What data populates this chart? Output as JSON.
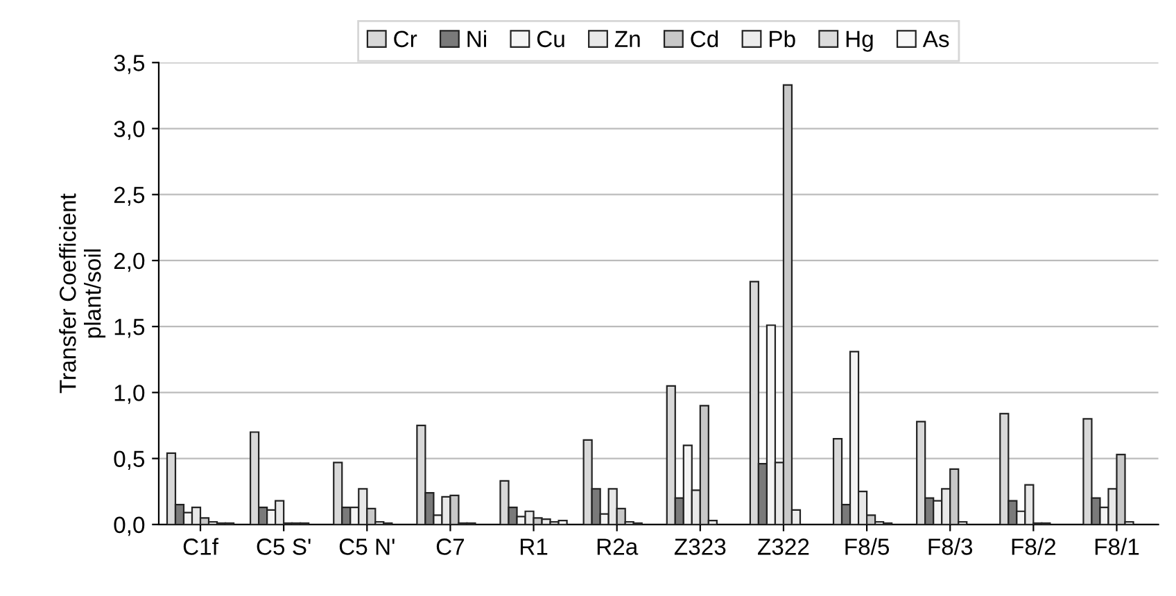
{
  "chart_data": {
    "type": "bar",
    "ylabel": "Transfer Coefficient\nplant/soil",
    "categories": [
      "C1f",
      "C5 S'",
      "C5 N'",
      "C7",
      "R1",
      "R2a",
      "Z323",
      "Z322",
      "F8/5",
      "F8/3",
      "F8/2",
      "F8/1"
    ],
    "series": [
      {
        "name": "Cr",
        "color": "#d8d8d8",
        "values": [
          0.54,
          0.7,
          0.47,
          0.75,
          0.33,
          0.64,
          1.05,
          1.84,
          0.65,
          0.78,
          0.84,
          0.8
        ]
      },
      {
        "name": "Ni",
        "color": "#7a7a7a",
        "values": [
          0.15,
          0.13,
          0.13,
          0.24,
          0.13,
          0.27,
          0.2,
          0.46,
          0.15,
          0.2,
          0.18,
          0.2
        ]
      },
      {
        "name": "Cu",
        "color": "#f4f4f4",
        "values": [
          0.09,
          0.11,
          0.13,
          0.07,
          0.06,
          0.08,
          0.6,
          1.51,
          1.31,
          0.18,
          0.1,
          0.13
        ]
      },
      {
        "name": "Zn",
        "color": "#e8e8e8",
        "values": [
          0.13,
          0.18,
          0.27,
          0.21,
          0.1,
          0.27,
          0.26,
          0.47,
          0.25,
          0.27,
          0.3,
          0.27
        ]
      },
      {
        "name": "Cd",
        "color": "#c8c8c8",
        "values": [
          0.05,
          0.01,
          0.12,
          0.22,
          0.05,
          0.12,
          0.9,
          3.33,
          0.07,
          0.42,
          0.01,
          0.53
        ]
      },
      {
        "name": "Pb",
        "color": "#ececec",
        "values": [
          0.02,
          0.01,
          0.02,
          0.01,
          0.04,
          0.02,
          0.03,
          0.11,
          0.02,
          0.02,
          0.01,
          0.02
        ]
      },
      {
        "name": "Hg",
        "color": "#dcdcdc",
        "values": [
          0.01,
          0.01,
          0.01,
          0.01,
          0.02,
          0.01,
          null,
          null,
          0.01,
          null,
          null,
          null
        ]
      },
      {
        "name": "As",
        "color": "#f8f8f8",
        "values": [
          0.01,
          null,
          null,
          null,
          0.03,
          null,
          null,
          null,
          null,
          null,
          null,
          null
        ]
      }
    ],
    "ylim": [
      0,
      3.5
    ],
    "yticks": [
      {
        "value": 0,
        "label": "0,0"
      },
      {
        "value": 0.5,
        "label": "0,5"
      },
      {
        "value": 1.0,
        "label": "1,0"
      },
      {
        "value": 1.5,
        "label": "1,5"
      },
      {
        "value": 2.0,
        "label": "2,0"
      },
      {
        "value": 2.5,
        "label": "2,5"
      },
      {
        "value": 3.0,
        "label": "3,0"
      },
      {
        "value": 3.5,
        "label": "3,5"
      }
    ],
    "grid": "y",
    "legend": "top"
  }
}
